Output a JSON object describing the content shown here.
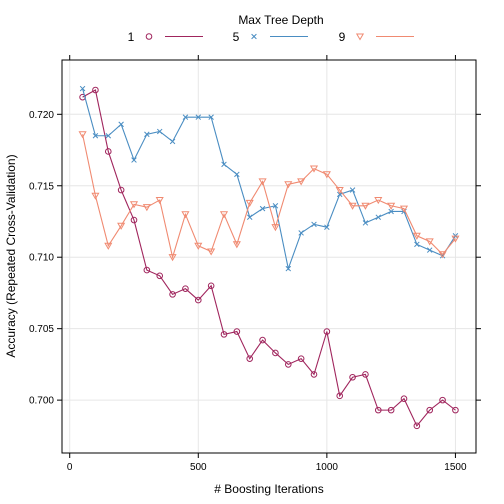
{
  "chart_data": {
    "type": "line",
    "xlabel": "# Boosting Iterations",
    "ylabel": "Accuracy (Repeated Cross-Validation)",
    "xlim": [
      -30,
      1580
    ],
    "ylim": [
      0.6963,
      0.7238
    ],
    "xticks": [
      0,
      500,
      1000,
      1500
    ],
    "yticks": [
      0.7,
      0.705,
      0.71,
      0.715,
      0.72
    ],
    "xtick_labels": [
      "0",
      "500",
      "1000",
      "1500"
    ],
    "ytick_labels": [
      "0.700",
      "0.705",
      "0.710",
      "0.715",
      "0.720"
    ],
    "grid": true,
    "legend": {
      "title": "Max Tree Depth",
      "placement": "top"
    },
    "x": [
      50,
      100,
      150,
      200,
      250,
      300,
      350,
      400,
      450,
      500,
      550,
      600,
      650,
      700,
      750,
      800,
      850,
      900,
      950,
      1000,
      1050,
      1100,
      1150,
      1200,
      1250,
      1300,
      1350,
      1400,
      1450,
      1500
    ],
    "series": [
      {
        "name": "1",
        "color": "#A0255D",
        "marker": "circle",
        "values": [
          0.7212,
          0.7217,
          0.7174,
          0.7147,
          0.7126,
          0.7091,
          0.7087,
          0.7074,
          0.7078,
          0.707,
          0.708,
          0.7046,
          0.7048,
          0.7029,
          0.7042,
          0.7033,
          0.7025,
          0.7029,
          0.7018,
          0.7048,
          0.7003,
          0.7016,
          0.7018,
          0.6993,
          0.6993,
          0.7001,
          0.6982,
          0.6993,
          0.7,
          0.6993
        ]
      },
      {
        "name": "5",
        "color": "#4A8DC2",
        "marker": "x",
        "values": [
          0.7218,
          0.7185,
          0.7185,
          0.7193,
          0.7168,
          0.7186,
          0.7188,
          0.7181,
          0.7198,
          0.7198,
          0.7198,
          0.7165,
          0.7158,
          0.7128,
          0.7134,
          0.7136,
          0.7092,
          0.7117,
          0.7123,
          0.7121,
          0.7144,
          0.7147,
          0.7124,
          0.7128,
          0.7132,
          0.7132,
          0.7109,
          0.7105,
          0.7101,
          0.7115
        ]
      },
      {
        "name": "9",
        "color": "#F08A71",
        "marker": "triangle-down",
        "values": [
          0.7186,
          0.7143,
          0.7108,
          0.7122,
          0.7137,
          0.7135,
          0.714,
          0.71,
          0.713,
          0.7108,
          0.7104,
          0.713,
          0.7109,
          0.7138,
          0.7153,
          0.7121,
          0.7151,
          0.7153,
          0.7162,
          0.7158,
          0.7147,
          0.7136,
          0.7136,
          0.714,
          0.7136,
          0.7134,
          0.7115,
          0.7111,
          0.7102,
          0.7113
        ]
      }
    ]
  }
}
